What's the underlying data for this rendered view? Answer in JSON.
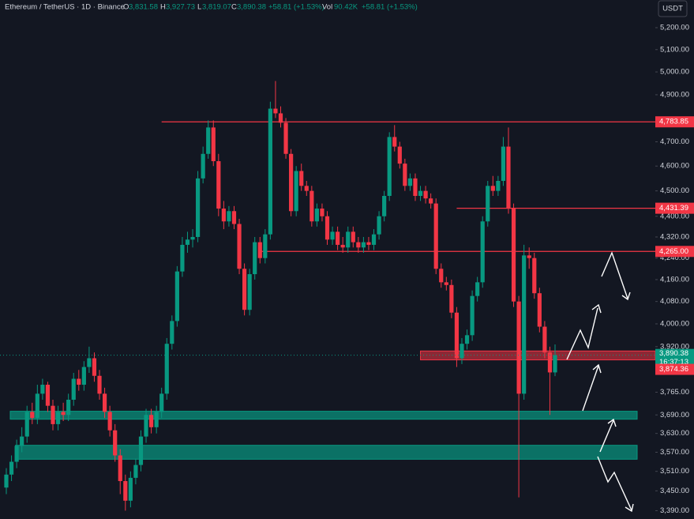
{
  "chart_data": {
    "type": "candlestick",
    "title": "Ethereum / TetherUS · 1D · Binance",
    "legend": {
      "open_label": "O",
      "open": "3,831.58",
      "high_label": "H",
      "high": "3,927.73",
      "low_label": "L",
      "low": "3,819.07",
      "close_label": "C",
      "close": "3,890.38",
      "change": "+58.81 (+1.53%)",
      "volume_label": "Vol",
      "volume": "90.42K",
      "volume_change": "+58.81 (+1.53%)"
    },
    "currency": "USDT",
    "log_scale": true,
    "up_color": "#089981",
    "down_color": "#f23645",
    "candles": [
      [
        3460,
        3520,
        3440,
        3500
      ],
      [
        3500,
        3560,
        3480,
        3540
      ],
      [
        3540,
        3610,
        3520,
        3590
      ],
      [
        3590,
        3650,
        3570,
        3620
      ],
      [
        3620,
        3720,
        3600,
        3700
      ],
      [
        3700,
        3730,
        3660,
        3680
      ],
      [
        3680,
        3790,
        3660,
        3760
      ],
      [
        3760,
        3810,
        3740,
        3790
      ],
      [
        3790,
        3800,
        3700,
        3720
      ],
      [
        3720,
        3740,
        3640,
        3660
      ],
      [
        3660,
        3720,
        3640,
        3700
      ],
      [
        3700,
        3730,
        3670,
        3690
      ],
      [
        3690,
        3760,
        3670,
        3740
      ],
      [
        3740,
        3830,
        3720,
        3810
      ],
      [
        3810,
        3840,
        3770,
        3790
      ],
      [
        3790,
        3870,
        3770,
        3850
      ],
      [
        3850,
        3920,
        3830,
        3880
      ],
      [
        3880,
        3900,
        3800,
        3820
      ],
      [
        3820,
        3840,
        3740,
        3760
      ],
      [
        3760,
        3780,
        3680,
        3700
      ],
      [
        3700,
        3720,
        3620,
        3640
      ],
      [
        3640,
        3660,
        3540,
        3560
      ],
      [
        3560,
        3580,
        3440,
        3480
      ],
      [
        3480,
        3500,
        3390,
        3420
      ],
      [
        3420,
        3510,
        3400,
        3490
      ],
      [
        3490,
        3550,
        3470,
        3530
      ],
      [
        3530,
        3640,
        3510,
        3620
      ],
      [
        3620,
        3710,
        3600,
        3690
      ],
      [
        3690,
        3710,
        3630,
        3650
      ],
      [
        3650,
        3720,
        3630,
        3700
      ],
      [
        3700,
        3780,
        3680,
        3760
      ],
      [
        3760,
        3950,
        3740,
        3930
      ],
      [
        3930,
        4030,
        3910,
        4010
      ],
      [
        4010,
        4210,
        3990,
        4190
      ],
      [
        4190,
        4320,
        4170,
        4290
      ],
      [
        4290,
        4340,
        4260,
        4310
      ],
      [
        4310,
        4350,
        4280,
        4320
      ],
      [
        4320,
        4580,
        4300,
        4550
      ],
      [
        4550,
        4680,
        4530,
        4650
      ],
      [
        4650,
        4790,
        4630,
        4760
      ],
      [
        4760,
        4790,
        4600,
        4620
      ],
      [
        4620,
        4650,
        4400,
        4430
      ],
      [
        4430,
        4460,
        4350,
        4380
      ],
      [
        4380,
        4440,
        4360,
        4420
      ],
      [
        4420,
        4440,
        4350,
        4370
      ],
      [
        4370,
        4390,
        4180,
        4200
      ],
      [
        4200,
        4220,
        4030,
        4050
      ],
      [
        4050,
        4200,
        4030,
        4180
      ],
      [
        4180,
        4320,
        4160,
        4300
      ],
      [
        4300,
        4320,
        4220,
        4240
      ],
      [
        4240,
        4350,
        4220,
        4330
      ],
      [
        4330,
        4870,
        4310,
        4840
      ],
      [
        4840,
        4960,
        4800,
        4820
      ],
      [
        4820,
        4850,
        4760,
        4780
      ],
      [
        4780,
        4800,
        4630,
        4650
      ],
      [
        4650,
        4670,
        4400,
        4420
      ],
      [
        4420,
        4600,
        4400,
        4580
      ],
      [
        4580,
        4610,
        4500,
        4520
      ],
      [
        4520,
        4540,
        4480,
        4500
      ],
      [
        4500,
        4520,
        4360,
        4380
      ],
      [
        4380,
        4450,
        4360,
        4430
      ],
      [
        4430,
        4450,
        4380,
        4400
      ],
      [
        4400,
        4420,
        4290,
        4310
      ],
      [
        4310,
        4360,
        4290,
        4340
      ],
      [
        4340,
        4360,
        4270,
        4290
      ],
      [
        4290,
        4320,
        4260,
        4280
      ],
      [
        4280,
        4360,
        4260,
        4340
      ],
      [
        4340,
        4360,
        4280,
        4300
      ],
      [
        4300,
        4320,
        4260,
        4280
      ],
      [
        4280,
        4320,
        4260,
        4300
      ],
      [
        4300,
        4320,
        4270,
        4290
      ],
      [
        4290,
        4350,
        4270,
        4330
      ],
      [
        4330,
        4420,
        4310,
        4400
      ],
      [
        4400,
        4500,
        4380,
        4480
      ],
      [
        4480,
        4740,
        4460,
        4720
      ],
      [
        4720,
        4770,
        4660,
        4680
      ],
      [
        4680,
        4700,
        4590,
        4610
      ],
      [
        4610,
        4630,
        4500,
        4520
      ],
      [
        4520,
        4570,
        4500,
        4550
      ],
      [
        4550,
        4570,
        4460,
        4480
      ],
      [
        4480,
        4520,
        4460,
        4500
      ],
      [
        4500,
        4520,
        4450,
        4470
      ],
      [
        4470,
        4490,
        4430,
        4450
      ],
      [
        4450,
        4470,
        4180,
        4200
      ],
      [
        4200,
        4220,
        4130,
        4150
      ],
      [
        4150,
        4170,
        4120,
        4140
      ],
      [
        4140,
        4160,
        4020,
        4040
      ],
      [
        4040,
        4060,
        3850,
        3880
      ],
      [
        3880,
        3950,
        3860,
        3930
      ],
      [
        3930,
        3980,
        3910,
        3960
      ],
      [
        3960,
        4120,
        3940,
        4100
      ],
      [
        4100,
        4170,
        4080,
        4150
      ],
      [
        4150,
        4400,
        4130,
        4380
      ],
      [
        4380,
        4540,
        4360,
        4520
      ],
      [
        4520,
        4560,
        4480,
        4500
      ],
      [
        4500,
        4560,
        4480,
        4540
      ],
      [
        4540,
        4720,
        4520,
        4680
      ],
      [
        4680,
        4760,
        4410,
        4430
      ],
      [
        4430,
        4450,
        4060,
        4080
      ],
      [
        4080,
        4100,
        3430,
        3760
      ],
      [
        3760,
        4290,
        3740,
        4250
      ],
      [
        4250,
        4280,
        4200,
        4240
      ],
      [
        4240,
        4260,
        4090,
        4110
      ],
      [
        4110,
        4130,
        3970,
        3990
      ],
      [
        3990,
        4010,
        3880,
        3900
      ],
      [
        3900,
        3920,
        3690,
        3831.58
      ],
      [
        3831.58,
        3927.73,
        3819.07,
        3890.38
      ]
    ],
    "ylim": [
      3365,
      5329
    ],
    "yticks": [
      {
        "value": 5200,
        "label": "5,200.00"
      },
      {
        "value": 5100,
        "label": "5,100.00"
      },
      {
        "value": 5000,
        "label": "5,000.00"
      },
      {
        "value": 4900,
        "label": "4,900.00"
      },
      {
        "value": 4700,
        "label": "4,700.00"
      },
      {
        "value": 4600,
        "label": "4,600.00"
      },
      {
        "value": 4500,
        "label": "4,500.00"
      },
      {
        "value": 4400,
        "label": "4,400.00"
      },
      {
        "value": 4320,
        "label": "4,320.00"
      },
      {
        "value": 4240,
        "label": "4,240.00"
      },
      {
        "value": 4160,
        "label": "4,160.00"
      },
      {
        "value": 4080,
        "label": "4,080.00"
      },
      {
        "value": 4000,
        "label": "4,000.00"
      },
      {
        "value": 3920,
        "label": "3,920.00"
      },
      {
        "value": 3765,
        "label": "3,765.00"
      },
      {
        "value": 3690,
        "label": "3,690.00"
      },
      {
        "value": 3630,
        "label": "3,630.00"
      },
      {
        "value": 3570,
        "label": "3,570.00"
      },
      {
        "value": 3510,
        "label": "3,510.00"
      },
      {
        "value": 3450,
        "label": "3,450.00"
      },
      {
        "value": 3390,
        "label": "3,390.00"
      }
    ],
    "levels": [
      {
        "value": 4783.85,
        "label": "4,783.85",
        "start": 30
      },
      {
        "value": 4431.39,
        "label": "4,431.39",
        "start": 87
      },
      {
        "value": 4265,
        "label": "4,265.00",
        "start": 49
      }
    ],
    "zones": [
      {
        "range": [
          3874.36,
          3905
        ],
        "color": "#f23645",
        "start": 80
      },
      {
        "range": [
          3676,
          3702
        ],
        "color": "#089981",
        "start": 0
      },
      {
        "range": [
          3548,
          3592
        ],
        "color": "#089981",
        "start": 1
      }
    ],
    "last_price": {
      "value": 3890.38,
      "label": "3,890.38",
      "countdown": "16:37:13"
    },
    "low_tag": {
      "value": 3874.36,
      "label": "3,874.36"
    }
  }
}
